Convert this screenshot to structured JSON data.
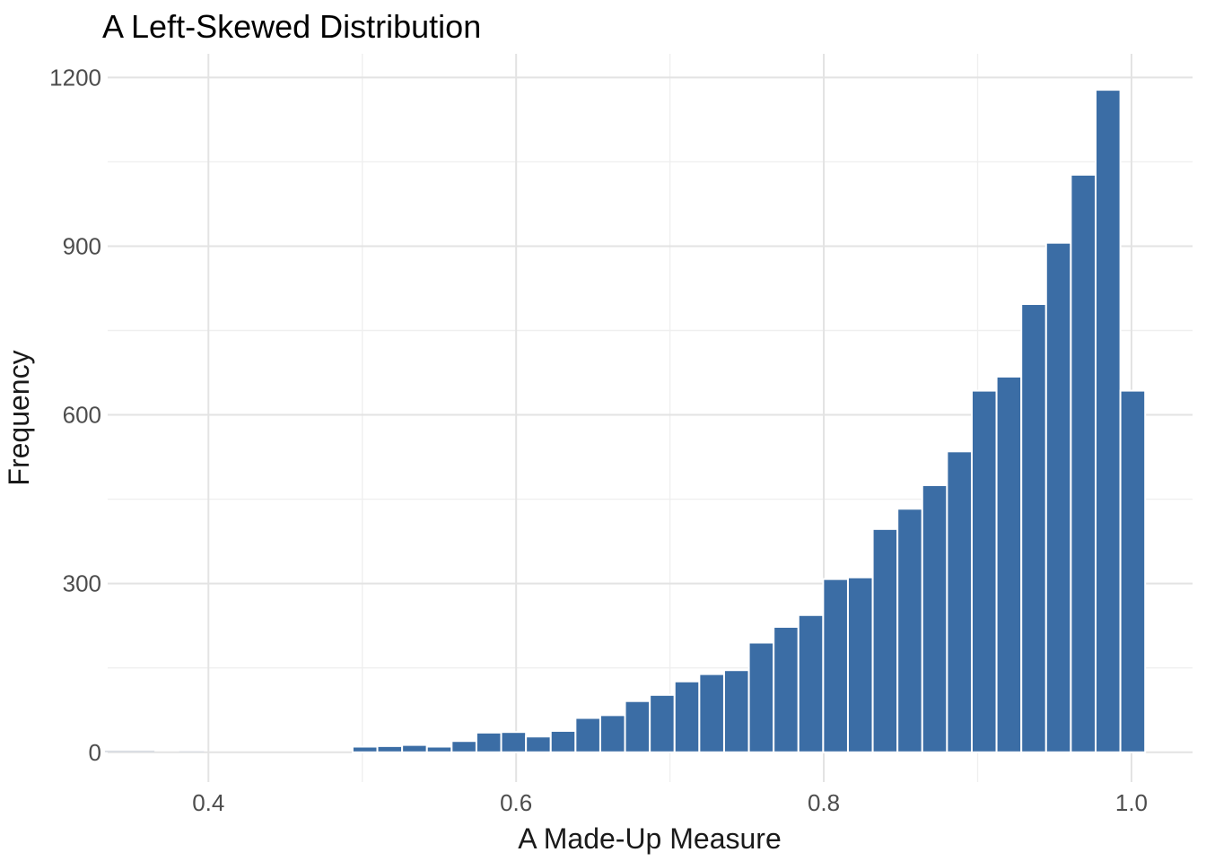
{
  "chart_data": {
    "type": "bar",
    "subtype": "histogram",
    "title": "A Left-Skewed Distribution",
    "xlabel": "A Made-Up Measure",
    "ylabel": "Frequency",
    "legend": "none",
    "grid": "major+minor",
    "background_color": "#ffffff",
    "bar_color": "#3b6da5",
    "bar_border_color": "#ffffff",
    "tiny_bar_color": "#d9dde3",
    "grid_major_color": "#e3e3e3",
    "grid_minor_color": "#efefef",
    "title_color": "#000000",
    "axis_title_color": "#1a1a1a",
    "tick_label_color": "#4d4d4d",
    "xlim": [
      0.3345,
      1.0397
    ],
    "ylim": [
      -53,
      1242
    ],
    "x_tick_values": [
      0.4,
      0.6,
      0.8,
      1.0
    ],
    "x_tick_labels": [
      "0.4",
      "0.6",
      "0.8",
      "1.0"
    ],
    "x_minor_values": [
      0.5,
      0.7,
      0.9
    ],
    "y_tick_values": [
      0,
      300,
      600,
      900,
      1200
    ],
    "y_tick_labels": [
      "0",
      "300",
      "600",
      "900",
      "1200"
    ],
    "y_minor_values": [
      150,
      450,
      750,
      1050
    ],
    "bin_start": 0.3327,
    "bin_width": 0.0161,
    "counts": [
      3,
      3,
      0,
      1,
      0,
      0,
      0,
      0,
      0,
      0,
      10,
      11,
      13,
      10,
      20,
      35,
      36,
      28,
      38,
      61,
      66,
      91,
      102,
      126,
      139,
      146,
      195,
      223,
      244,
      308,
      311,
      397,
      433,
      475,
      535,
      643,
      668,
      797,
      906,
      1027,
      1178,
      643
    ]
  }
}
